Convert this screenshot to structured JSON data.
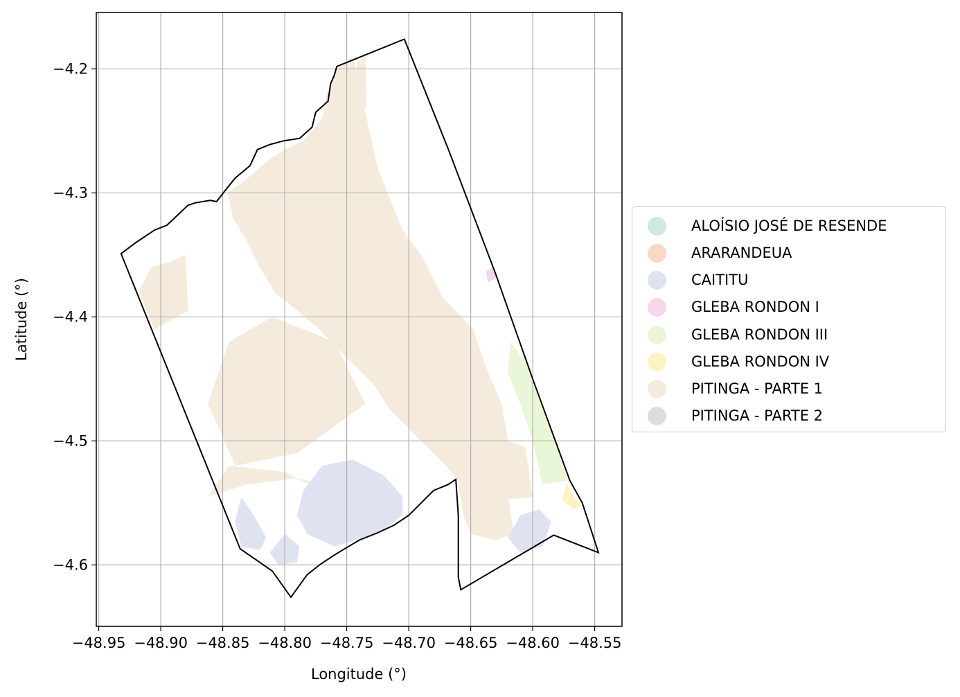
{
  "chart_data": {
    "type": "map",
    "xlabel": "Longitude (°)",
    "ylabel": "Latitude (°)",
    "xlim": [
      -48.952,
      -48.528
    ],
    "ylim": [
      -4.6495,
      -4.1545
    ],
    "grid": true,
    "legend_position": "right",
    "xticks": [
      -48.95,
      -48.9,
      -48.85,
      -48.8,
      -48.75,
      -48.7,
      -48.65,
      -48.6,
      -48.55
    ],
    "xtick_labels": [
      "−48.95",
      "−48.90",
      "−48.85",
      "−48.80",
      "−48.75",
      "−48.70",
      "−48.65",
      "−48.60",
      "−48.55"
    ],
    "yticks": [
      -4.2,
      -4.3,
      -4.4,
      -4.5,
      -4.6
    ],
    "ytick_labels": [
      "−4.2",
      "−4.3",
      "−4.4",
      "−4.5",
      "−4.6"
    ],
    "categories": [
      {
        "name": "ALOÍSIO JOSÉ DE RESENDE",
        "color": "#cdeadc"
      },
      {
        "name": "ARARANDEUA",
        "color": "#fbd8c4"
      },
      {
        "name": "CAITITU",
        "color": "#dfe3f1"
      },
      {
        "name": "GLEBA RONDON I",
        "color": "#f5d6ea"
      },
      {
        "name": "GLEBA RONDON III",
        "color": "#e9f6d8"
      },
      {
        "name": "GLEBA RONDON IV",
        "color": "#fdf3c2"
      },
      {
        "name": "PITINGA - PARTE 1",
        "color": "#f5ebdd"
      },
      {
        "name": "PITINGA - PARTE 2",
        "color": "#dddddd"
      }
    ],
    "boundary": [
      [
        -48.932,
        -4.349
      ],
      [
        -48.92,
        -4.34
      ],
      [
        -48.905,
        -4.33
      ],
      [
        -48.895,
        -4.326
      ],
      [
        -48.878,
        -4.31
      ],
      [
        -48.872,
        -4.308
      ],
      [
        -48.86,
        -4.306
      ],
      [
        -48.855,
        -4.307
      ],
      [
        -48.848,
        -4.298
      ],
      [
        -48.84,
        -4.288
      ],
      [
        -48.828,
        -4.278
      ],
      [
        -48.822,
        -4.265
      ],
      [
        -48.812,
        -4.261
      ],
      [
        -48.801,
        -4.258
      ],
      [
        -48.788,
        -4.256
      ],
      [
        -48.778,
        -4.247
      ],
      [
        -48.775,
        -4.235
      ],
      [
        -48.765,
        -4.226
      ],
      [
        -48.763,
        -4.212
      ],
      [
        -48.76,
        -4.205
      ],
      [
        -48.758,
        -4.198
      ],
      [
        -48.7035,
        -4.176
      ],
      [
        -48.668,
        -4.265
      ],
      [
        -48.63,
        -4.365
      ],
      [
        -48.6,
        -4.45
      ],
      [
        -48.57,
        -4.532
      ],
      [
        -48.56,
        -4.55
      ],
      [
        -48.547,
        -4.59
      ],
      [
        -48.583,
        -4.576
      ],
      [
        -48.658,
        -4.62
      ],
      [
        -48.66,
        -4.61
      ],
      [
        -48.66,
        -4.56
      ],
      [
        -48.662,
        -4.531
      ],
      [
        -48.668,
        -4.535
      ],
      [
        -48.68,
        -4.54
      ],
      [
        -48.69,
        -4.55
      ],
      [
        -48.7,
        -4.56
      ],
      [
        -48.712,
        -4.568
      ],
      [
        -48.725,
        -4.574
      ],
      [
        -48.74,
        -4.58
      ],
      [
        -48.75,
        -4.586
      ],
      [
        -48.76,
        -4.592
      ],
      [
        -48.772,
        -4.6
      ],
      [
        -48.782,
        -4.608
      ],
      [
        -48.795,
        -4.626
      ],
      [
        -48.81,
        -4.605
      ],
      [
        -48.82,
        -4.598
      ],
      [
        -48.836,
        -4.587
      ]
    ],
    "regions": [
      {
        "category": "PITINGA - PARTE 1",
        "polygon": [
          [
            -48.757,
            -4.199
          ],
          [
            -48.745,
            -4.19
          ],
          [
            -48.74,
            -4.21
          ],
          [
            -48.735,
            -4.235
          ],
          [
            -48.725,
            -4.28
          ],
          [
            -48.705,
            -4.33
          ],
          [
            -48.69,
            -4.35
          ],
          [
            -48.672,
            -4.385
          ],
          [
            -48.648,
            -4.41
          ],
          [
            -48.638,
            -4.44
          ],
          [
            -48.625,
            -4.47
          ],
          [
            -48.62,
            -4.5
          ],
          [
            -48.606,
            -4.505
          ],
          [
            -48.6,
            -4.545
          ],
          [
            -48.628,
            -4.548
          ],
          [
            -48.65,
            -4.545
          ],
          [
            -48.67,
            -4.52
          ],
          [
            -48.685,
            -4.505
          ],
          [
            -48.7,
            -4.49
          ],
          [
            -48.715,
            -4.475
          ],
          [
            -48.728,
            -4.455
          ],
          [
            -48.743,
            -4.44
          ],
          [
            -48.758,
            -4.425
          ],
          [
            -48.772,
            -4.41
          ],
          [
            -48.79,
            -4.395
          ],
          [
            -48.808,
            -4.38
          ],
          [
            -48.82,
            -4.36
          ],
          [
            -48.83,
            -4.34
          ],
          [
            -48.842,
            -4.32
          ],
          [
            -48.846,
            -4.3
          ],
          [
            -48.83,
            -4.288
          ],
          [
            -48.815,
            -4.275
          ],
          [
            -48.8,
            -4.265
          ],
          [
            -48.785,
            -4.258
          ],
          [
            -48.77,
            -4.24
          ],
          [
            -48.765,
            -4.215
          ]
        ]
      },
      {
        "category": "PITINGA - PARTE 1",
        "polygon": [
          [
            -48.742,
            -4.195
          ],
          [
            -48.735,
            -4.19
          ],
          [
            -48.734,
            -4.23
          ],
          [
            -48.742,
            -4.24
          ]
        ]
      },
      {
        "category": "PITINGA - PARTE 1",
        "polygon": [
          [
            -48.893,
            -4.356
          ],
          [
            -48.88,
            -4.35
          ],
          [
            -48.878,
            -4.395
          ],
          [
            -48.905,
            -4.41
          ],
          [
            -48.918,
            -4.38
          ],
          [
            -48.908,
            -4.36
          ]
        ]
      },
      {
        "category": "PITINGA - PARTE 1",
        "polygon": [
          [
            -48.81,
            -4.4
          ],
          [
            -48.76,
            -4.42
          ],
          [
            -48.735,
            -4.47
          ],
          [
            -48.79,
            -4.51
          ],
          [
            -48.84,
            -4.52
          ],
          [
            -48.862,
            -4.47
          ],
          [
            -48.845,
            -4.42
          ]
        ]
      },
      {
        "category": "PITINGA - PARTE 1",
        "polygon": [
          [
            -48.845,
            -4.52
          ],
          [
            -48.8,
            -4.525
          ],
          [
            -48.76,
            -4.545
          ],
          [
            -48.72,
            -4.555
          ],
          [
            -48.705,
            -4.565
          ],
          [
            -48.74,
            -4.54
          ],
          [
            -48.79,
            -4.53
          ],
          [
            -48.83,
            -4.535
          ],
          [
            -48.862,
            -4.545
          ]
        ]
      },
      {
        "category": "PITINGA - PARTE 1",
        "polygon": [
          [
            -48.66,
            -4.535
          ],
          [
            -48.64,
            -4.53
          ],
          [
            -48.62,
            -4.545
          ],
          [
            -48.615,
            -4.575
          ],
          [
            -48.63,
            -4.58
          ],
          [
            -48.65,
            -4.575
          ],
          [
            -48.656,
            -4.56
          ]
        ]
      },
      {
        "category": "GLEBA RONDON III",
        "polygon": [
          [
            -48.618,
            -4.42
          ],
          [
            -48.605,
            -4.438
          ],
          [
            -48.598,
            -4.455
          ],
          [
            -48.585,
            -4.49
          ],
          [
            -48.572,
            -4.532
          ],
          [
            -48.592,
            -4.535
          ],
          [
            -48.6,
            -4.5
          ],
          [
            -48.61,
            -4.47
          ],
          [
            -48.62,
            -4.445
          ]
        ]
      },
      {
        "category": "GLEBA RONDON I",
        "polygon": [
          [
            -48.638,
            -4.363
          ],
          [
            -48.632,
            -4.36
          ],
          [
            -48.628,
            -4.368
          ],
          [
            -48.636,
            -4.372
          ]
        ]
      },
      {
        "category": "GLEBA RONDON IV",
        "polygon": [
          [
            -48.573,
            -4.534
          ],
          [
            -48.565,
            -4.548
          ],
          [
            -48.56,
            -4.552
          ],
          [
            -48.567,
            -4.555
          ],
          [
            -48.576,
            -4.548
          ]
        ]
      },
      {
        "category": "CAITITU",
        "polygon": [
          [
            -48.77,
            -4.52
          ],
          [
            -48.745,
            -4.515
          ],
          [
            -48.72,
            -4.528
          ],
          [
            -48.705,
            -4.545
          ],
          [
            -48.705,
            -4.56
          ],
          [
            -48.725,
            -4.575
          ],
          [
            -48.76,
            -4.585
          ],
          [
            -48.782,
            -4.575
          ],
          [
            -48.79,
            -4.56
          ],
          [
            -48.785,
            -4.54
          ]
        ]
      },
      {
        "category": "CAITITU",
        "polygon": [
          [
            -48.835,
            -4.545
          ],
          [
            -48.825,
            -4.56
          ],
          [
            -48.815,
            -4.578
          ],
          [
            -48.82,
            -4.588
          ],
          [
            -48.835,
            -4.585
          ],
          [
            -48.84,
            -4.565
          ]
        ]
      },
      {
        "category": "CAITITU",
        "polygon": [
          [
            -48.8,
            -4.575
          ],
          [
            -48.788,
            -4.585
          ],
          [
            -48.79,
            -4.598
          ],
          [
            -48.805,
            -4.6
          ],
          [
            -48.812,
            -4.59
          ]
        ]
      },
      {
        "category": "CAITITU",
        "polygon": [
          [
            -48.61,
            -4.56
          ],
          [
            -48.595,
            -4.555
          ],
          [
            -48.585,
            -4.565
          ],
          [
            -48.592,
            -4.585
          ],
          [
            -48.61,
            -4.59
          ],
          [
            -48.62,
            -4.578
          ]
        ]
      }
    ]
  }
}
